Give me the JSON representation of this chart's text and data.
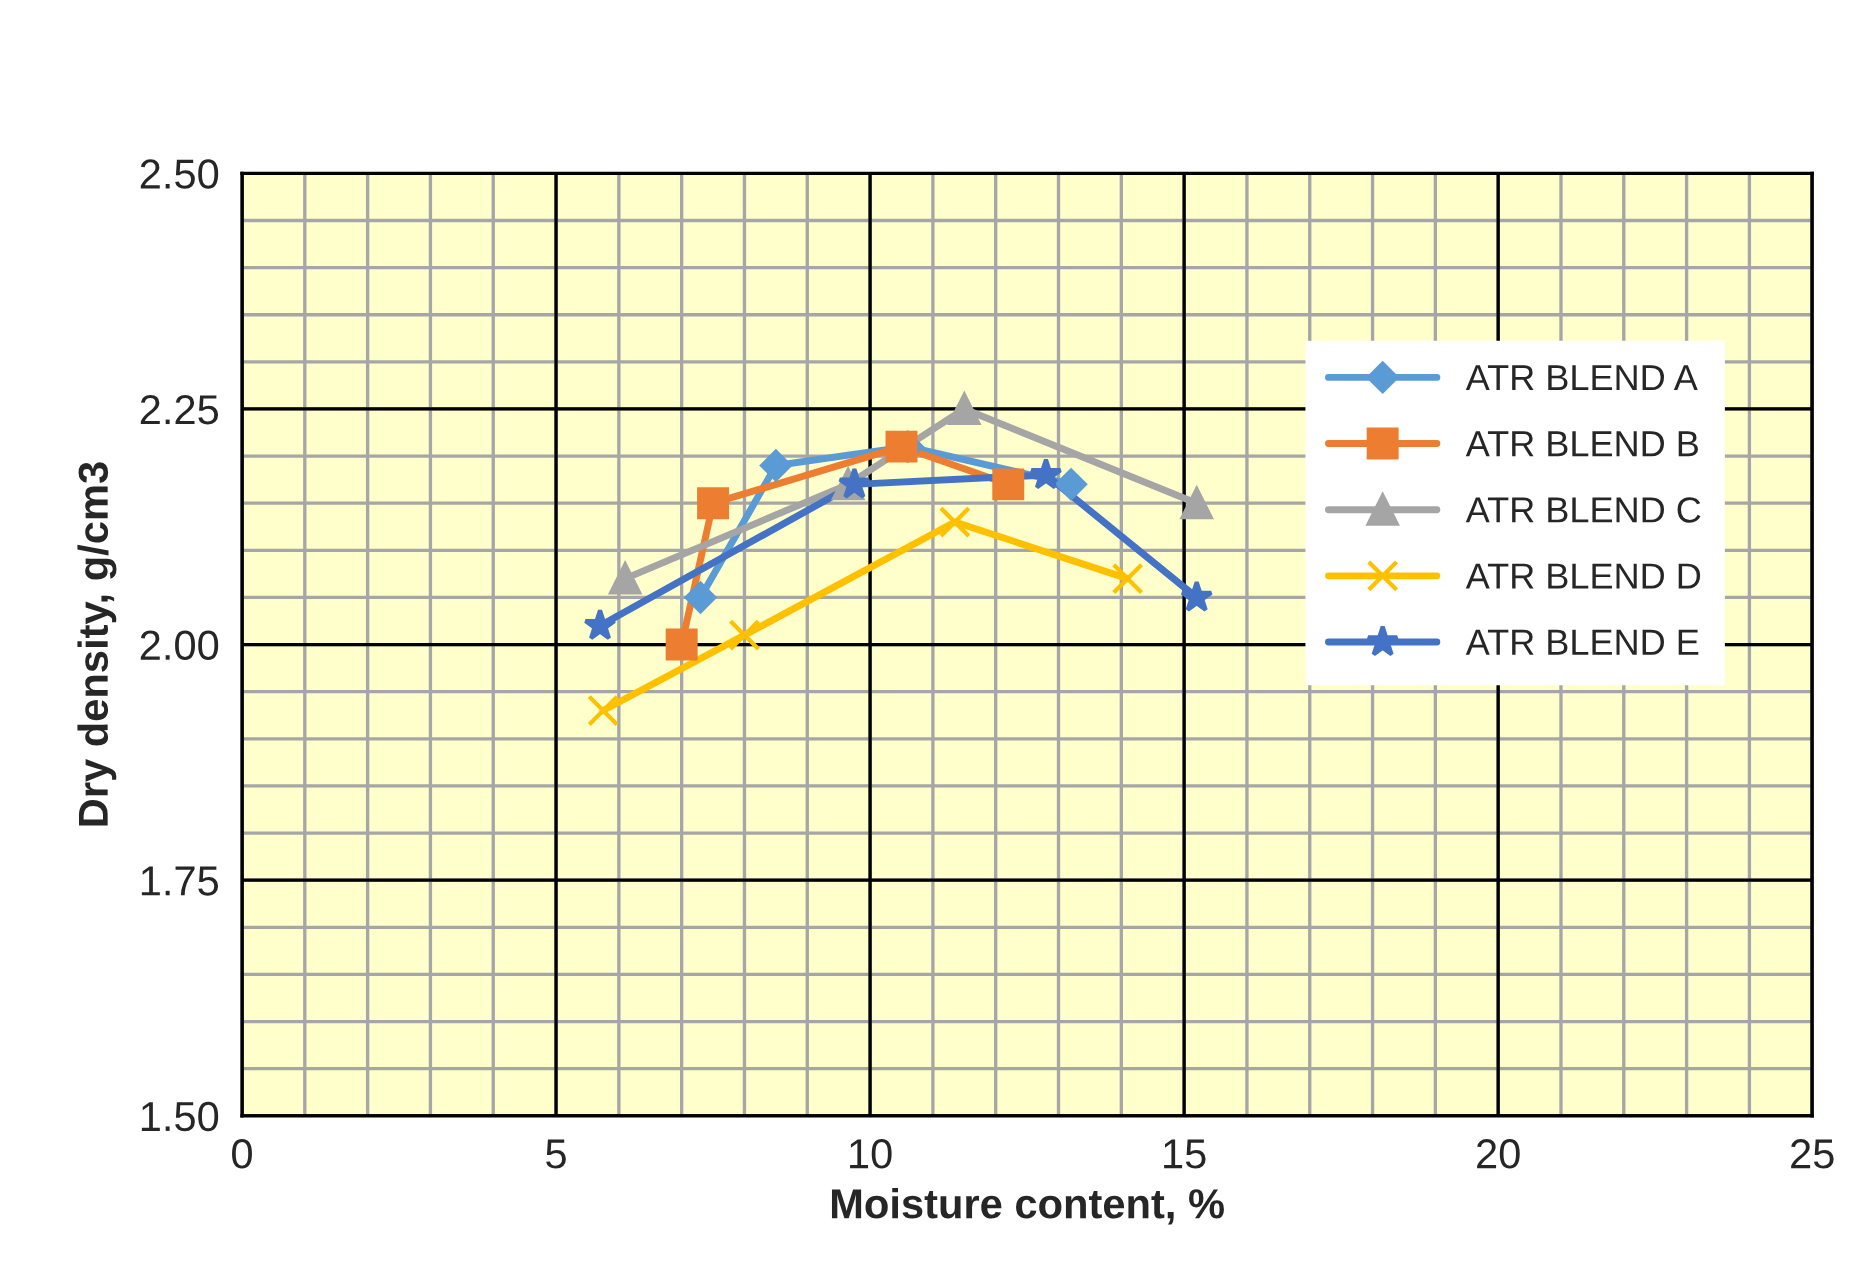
{
  "chart_data": {
    "type": "line",
    "xlabel": "Moisture content, %",
    "ylabel": "Dry density, g/cm3",
    "xlim": [
      0,
      25
    ],
    "xticks": [
      0,
      5,
      10,
      15,
      20,
      25
    ],
    "ylim": [
      1.5,
      2.5
    ],
    "yticks": [
      {
        "value": 1.5,
        "label": "1.50"
      },
      {
        "value": 1.75,
        "label": "1.75"
      },
      {
        "value": 2.0,
        "label": "2.00"
      },
      {
        "value": 2.25,
        "label": "2.25"
      },
      {
        "value": 2.5,
        "label": "2.50"
      }
    ],
    "grid": true,
    "legend": "top right",
    "series": [
      {
        "name": "ATR BLEND A",
        "color": "#5b9bd5",
        "marker": "diamond",
        "x": [
          7.3,
          8.5,
          10.6,
          13.2
        ],
        "values": [
          2.05,
          2.19,
          2.21,
          2.17
        ]
      },
      {
        "name": "ATR BLEND B",
        "color": "#ed7d31",
        "marker": "square",
        "x": [
          7.0,
          7.5,
          10.5,
          12.2
        ],
        "values": [
          2.0,
          2.15,
          2.21,
          2.17
        ]
      },
      {
        "name": "ATR BLEND C",
        "color": "#a5a5a5",
        "marker": "triangle",
        "x": [
          6.1,
          9.65,
          11.5,
          15.2
        ],
        "values": [
          2.07,
          2.17,
          2.25,
          2.15
        ]
      },
      {
        "name": "ATR BLEND D",
        "color": "#ffc000",
        "marker": "cross",
        "x": [
          5.75,
          8.0,
          11.35,
          14.1
        ],
        "values": [
          1.93,
          2.01,
          2.13,
          2.07
        ]
      },
      {
        "name": "ATR BLEND E",
        "color": "#4472c4",
        "marker": "star",
        "x": [
          5.7,
          9.75,
          12.8,
          15.2
        ],
        "values": [
          2.02,
          2.17,
          2.18,
          2.05
        ]
      }
    ]
  }
}
